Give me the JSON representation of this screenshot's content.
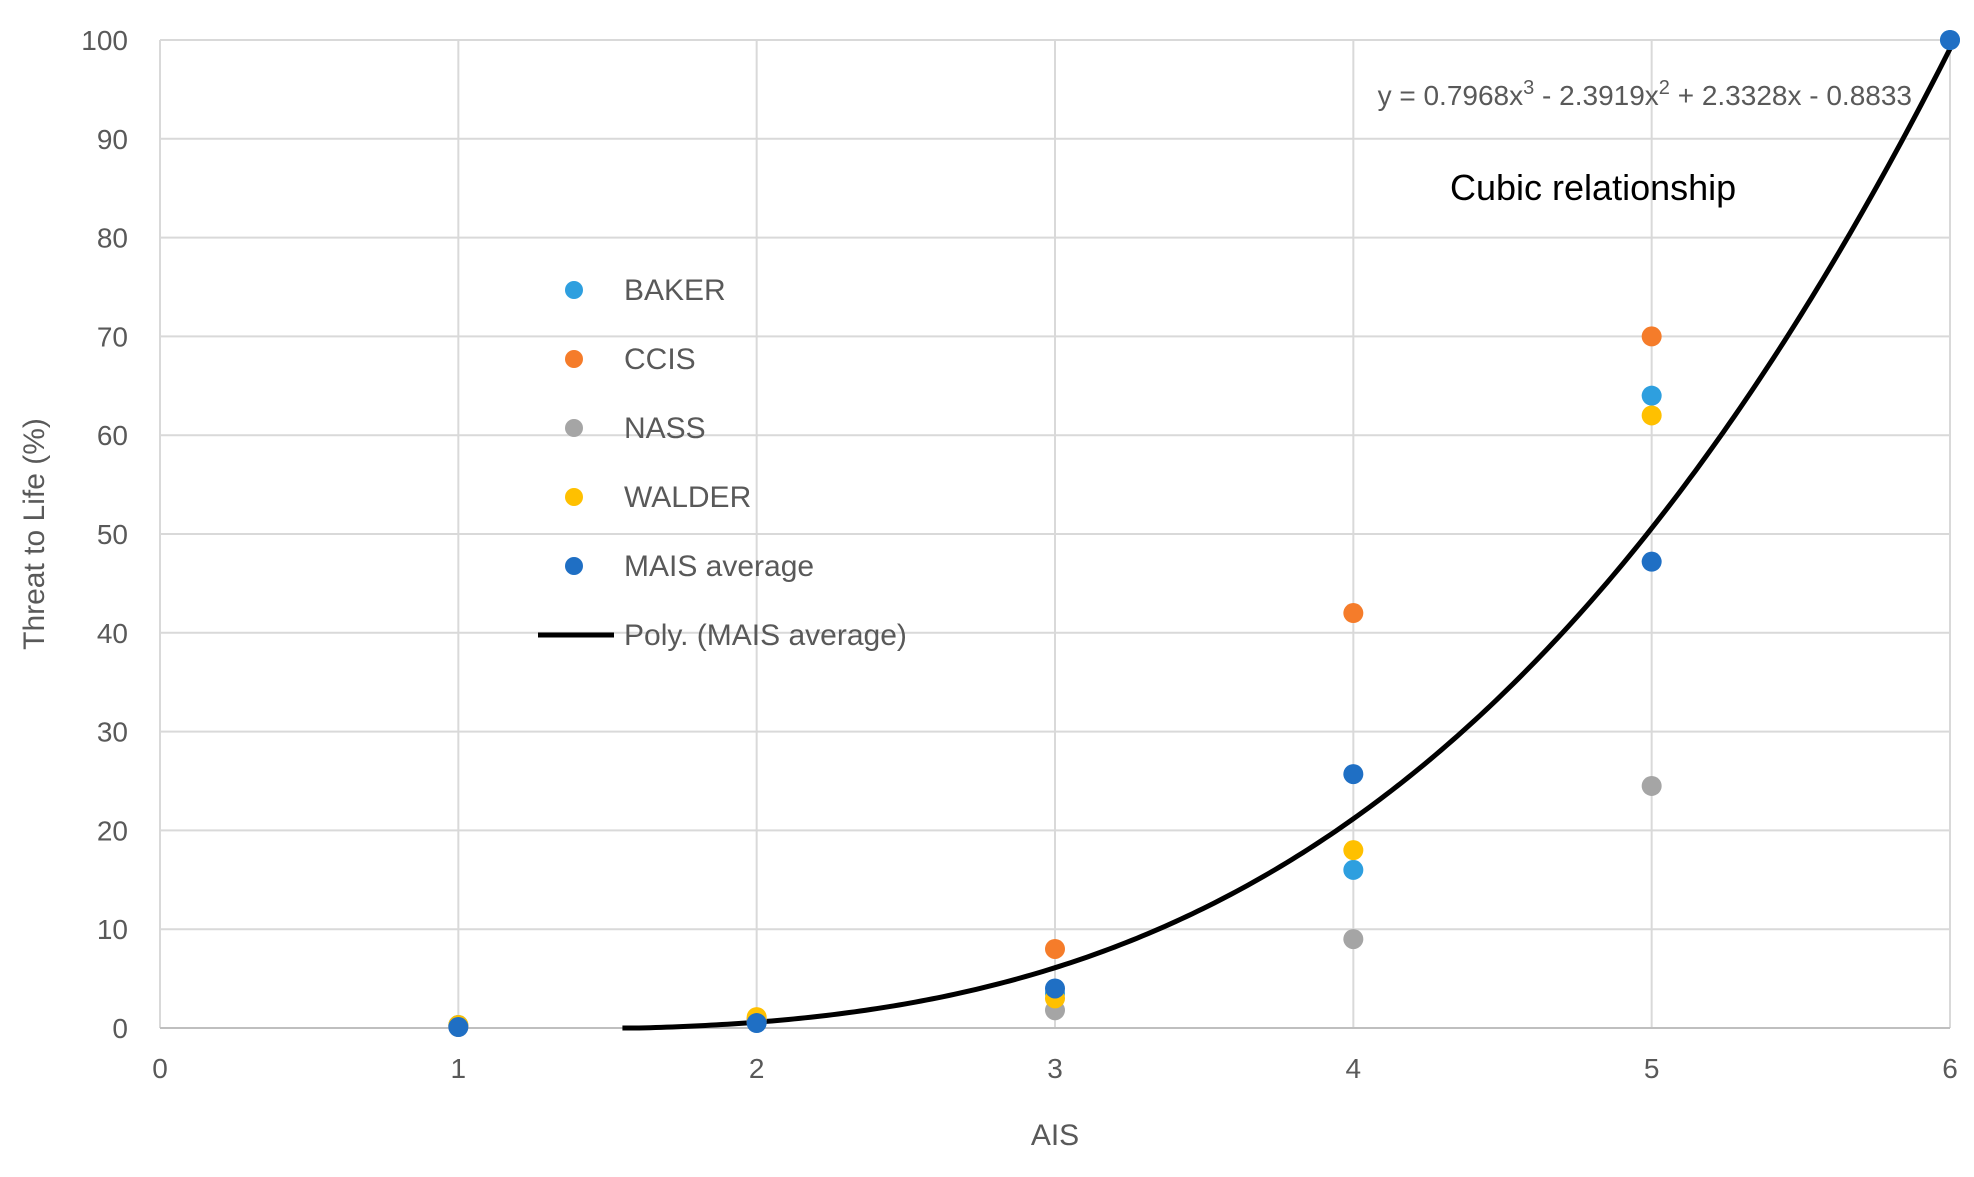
{
  "chart_data": {
    "type": "scatter",
    "title": "",
    "xlabel": "AIS",
    "ylabel": "Threat to Life (%)",
    "xlim": [
      0,
      6
    ],
    "ylim": [
      0,
      100
    ],
    "x_ticks": [
      "0",
      "1",
      "2",
      "3",
      "4",
      "5",
      "6"
    ],
    "y_ticks": [
      "0",
      "10",
      "20",
      "30",
      "40",
      "50",
      "60",
      "70",
      "80",
      "90",
      "100"
    ],
    "grid": true,
    "legend_placement": "center-left",
    "series": [
      {
        "name": "BAKER",
        "color": "#2e9fdf",
        "points": [
          [
            1,
            0.3
          ],
          [
            2,
            0.8
          ],
          [
            3,
            3.5
          ],
          [
            4,
            16
          ],
          [
            5,
            64
          ],
          [
            6,
            100
          ]
        ]
      },
      {
        "name": "CCIS",
        "color": "#f57c2a",
        "points": [
          [
            1,
            0.2
          ],
          [
            2,
            0.9
          ],
          [
            3,
            8
          ],
          [
            4,
            42
          ],
          [
            5,
            70
          ]
        ]
      },
      {
        "name": "NASS",
        "color": "#a5a5a5",
        "points": [
          [
            1,
            0.1
          ],
          [
            2,
            0.6
          ],
          [
            3,
            1.8
          ],
          [
            4,
            9
          ],
          [
            5,
            24.5
          ]
        ]
      },
      {
        "name": "WALDER",
        "color": "#ffc000",
        "points": [
          [
            1,
            0.3
          ],
          [
            2,
            1.1
          ],
          [
            3,
            3
          ],
          [
            4,
            18
          ],
          [
            5,
            62
          ]
        ]
      },
      {
        "name": "MAIS average",
        "color": "#1f6fc4",
        "points": [
          [
            1,
            0.1
          ],
          [
            2,
            0.5
          ],
          [
            3,
            4
          ],
          [
            4,
            25.7
          ],
          [
            5,
            47.2
          ],
          [
            6,
            100
          ]
        ]
      }
    ],
    "trendline": {
      "name": "Poly. (MAIS average)",
      "color": "#000000",
      "type": "polynomial",
      "order": 3,
      "coefficients": [
        0.7968,
        -2.3919,
        2.3328,
        -0.8833
      ],
      "x_range": [
        1.55,
        6
      ],
      "equation_parts": [
        "y = 0.7968x",
        "3",
        " - 2.3919x",
        "2",
        " + 2.3328x - 0.8833"
      ]
    },
    "annotations": [
      {
        "text": "Cubic relationship"
      }
    ]
  }
}
